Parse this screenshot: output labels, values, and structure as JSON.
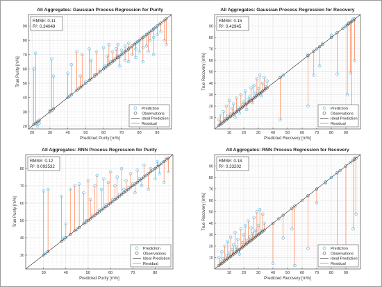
{
  "chart_data": [
    {
      "type": "scatter",
      "title": "All Aggregates: Gaussian Process Regression for Purity",
      "xlabel": "Predicted Purity [m%]",
      "ylabel": "True Purity [m%]",
      "xlim": [
        18,
        98
      ],
      "ylim": [
        18,
        98
      ],
      "xticks": [
        20,
        30,
        40,
        50,
        60,
        70,
        80,
        90
      ],
      "yticks": [
        20,
        30,
        40,
        50,
        60,
        70,
        80,
        90
      ],
      "grid": true,
      "stats": [
        "RMSE: 0.11",
        "R²: 0.34049"
      ],
      "legend": [
        "Prediction",
        "Observations",
        "Ideal Prediction",
        "Residual"
      ],
      "legend_position": "bottom-right",
      "points": [
        [
          21,
          60
        ],
        [
          22,
          71
        ],
        [
          23,
          20
        ],
        [
          24,
          22
        ],
        [
          30,
          31
        ],
        [
          31,
          67
        ],
        [
          32,
          55
        ],
        [
          40,
          57
        ],
        [
          41,
          41
        ],
        [
          42,
          63
        ],
        [
          45,
          72
        ],
        [
          46,
          46
        ],
        [
          47,
          55
        ],
        [
          48,
          70
        ],
        [
          50,
          51
        ],
        [
          52,
          74
        ],
        [
          53,
          66
        ],
        [
          55,
          56
        ],
        [
          56,
          72
        ],
        [
          58,
          59
        ],
        [
          60,
          75
        ],
        [
          61,
          62
        ],
        [
          62,
          69
        ],
        [
          63,
          77
        ],
        [
          64,
          65
        ],
        [
          65,
          72
        ],
        [
          66,
          67
        ],
        [
          67,
          74
        ],
        [
          68,
          77
        ],
        [
          68,
          69
        ],
        [
          69,
          62
        ],
        [
          70,
          73
        ],
        [
          71,
          71
        ],
        [
          72,
          76
        ],
        [
          72,
          66
        ],
        [
          73,
          73
        ],
        [
          74,
          78
        ],
        [
          74,
          65
        ],
        [
          75,
          75
        ],
        [
          76,
          70
        ],
        [
          77,
          77
        ],
        [
          78,
          74
        ],
        [
          78,
          68
        ],
        [
          79,
          79
        ],
        [
          80,
          72
        ],
        [
          81,
          81
        ],
        [
          82,
          75
        ],
        [
          82,
          65
        ],
        [
          83,
          83
        ],
        [
          84,
          76
        ],
        [
          85,
          85
        ],
        [
          85,
          72
        ],
        [
          86,
          80
        ],
        [
          87,
          87
        ],
        [
          88,
          82
        ],
        [
          88,
          70
        ],
        [
          89,
          89
        ],
        [
          90,
          84
        ],
        [
          91,
          91
        ],
        [
          92,
          86
        ],
        [
          94,
          80
        ],
        [
          95,
          77
        ]
      ]
    },
    {
      "type": "scatter",
      "title": "All Aggregates: Gaussian Process Regression for Recovery",
      "xlabel": "Predicted Recovery [m%]",
      "ylabel": "True Recovery [m%]",
      "xlim": [
        0,
        100
      ],
      "ylim": [
        0,
        100
      ],
      "xticks": [
        10,
        20,
        30,
        40,
        50,
        60,
        70,
        80,
        90
      ],
      "yticks": [
        10,
        20,
        30,
        40,
        50,
        60,
        70,
        80,
        90
      ],
      "grid": true,
      "stats": [
        "RMSE: 0.15",
        "R²: 0.42945"
      ],
      "legend": [
        "Prediction",
        "Observations",
        "Ideal Prediction",
        "Residual"
      ],
      "legend_position": "bottom-right",
      "points": [
        [
          3,
          8
        ],
        [
          4,
          12
        ],
        [
          5,
          6
        ],
        [
          6,
          15
        ],
        [
          7,
          9
        ],
        [
          8,
          20
        ],
        [
          9,
          11
        ],
        [
          10,
          25
        ],
        [
          11,
          13
        ],
        [
          12,
          18
        ],
        [
          13,
          22
        ],
        [
          14,
          10
        ],
        [
          15,
          27
        ],
        [
          16,
          19
        ],
        [
          17,
          14
        ],
        [
          18,
          30
        ],
        [
          19,
          21
        ],
        [
          20,
          24
        ],
        [
          21,
          33
        ],
        [
          22,
          17
        ],
        [
          23,
          26
        ],
        [
          24,
          28
        ],
        [
          25,
          36
        ],
        [
          26,
          23
        ],
        [
          27,
          38
        ],
        [
          28,
          31
        ],
        [
          29,
          44
        ],
        [
          30,
          35
        ],
        [
          31,
          47
        ],
        [
          32,
          29
        ],
        [
          33,
          40
        ],
        [
          34,
          45
        ],
        [
          35,
          37
        ],
        [
          36,
          42
        ],
        [
          45,
          8
        ],
        [
          47,
          47
        ],
        [
          64,
          65
        ],
        [
          64,
          20
        ],
        [
          68,
          47
        ],
        [
          70,
          70
        ],
        [
          72,
          55
        ],
        [
          74,
          75
        ],
        [
          80,
          82
        ],
        [
          84,
          48
        ],
        [
          88,
          88
        ],
        [
          90,
          90
        ],
        [
          91,
          30
        ],
        [
          92,
          93
        ],
        [
          93,
          49
        ],
        [
          94,
          5
        ],
        [
          95,
          96
        ],
        [
          96,
          60
        ]
      ]
    },
    {
      "type": "scatter",
      "title": "All Aggregates: RNN Process Regression for Purity",
      "xlabel": "Predicted Purity [m%]",
      "ylabel": "True Purity [m%]",
      "xlim": [
        22,
        88
      ],
      "ylim": [
        22,
        88
      ],
      "xticks": [
        30,
        40,
        50,
        60,
        70,
        80
      ],
      "yticks": [
        30,
        40,
        50,
        60,
        70,
        80
      ],
      "grid": true,
      "stats": [
        "RMSE: 0.12",
        "R²: 0.093532"
      ],
      "legend": [
        "Prediction",
        "Observations",
        "Ideal Prediction",
        "Residual"
      ],
      "legend_position": "bottom-right",
      "points": [
        [
          30,
          67
        ],
        [
          31,
          31
        ],
        [
          32,
          68
        ],
        [
          38,
          64
        ],
        [
          39,
          40
        ],
        [
          40,
          48
        ],
        [
          42,
          68
        ],
        [
          44,
          70
        ],
        [
          45,
          45
        ],
        [
          46,
          71
        ],
        [
          48,
          66
        ],
        [
          49,
          50
        ],
        [
          50,
          73
        ],
        [
          51,
          62
        ],
        [
          52,
          53
        ],
        [
          53,
          70
        ],
        [
          54,
          76
        ],
        [
          55,
          56
        ],
        [
          56,
          68
        ],
        [
          57,
          74
        ],
        [
          58,
          59
        ],
        [
          59,
          72
        ],
        [
          60,
          78
        ],
        [
          61,
          62
        ],
        [
          62,
          70
        ],
        [
          63,
          75
        ],
        [
          64,
          65
        ],
        [
          65,
          80
        ],
        [
          66,
          68
        ],
        [
          67,
          73
        ],
        [
          68,
          69
        ],
        [
          69,
          77
        ],
        [
          70,
          71
        ],
        [
          71,
          66
        ],
        [
          72,
          79
        ],
        [
          73,
          74
        ],
        [
          74,
          70
        ],
        [
          75,
          82
        ],
        [
          76,
          76
        ],
        [
          77,
          68
        ],
        [
          78,
          80
        ],
        [
          79,
          79
        ],
        [
          80,
          74
        ],
        [
          81,
          84
        ],
        [
          82,
          77
        ],
        [
          83,
          83
        ],
        [
          84,
          72
        ],
        [
          85,
          86
        ],
        [
          86,
          78
        ]
      ]
    },
    {
      "type": "scatter",
      "title": "All Aggregates: RNN Process Regression for Recovery",
      "xlabel": "Predicted Recovery [m%]",
      "ylabel": "True Recovery [m%]",
      "xlim": [
        0,
        100
      ],
      "ylim": [
        0,
        100
      ],
      "xticks": [
        10,
        20,
        30,
        40,
        50,
        60,
        70,
        80,
        90
      ],
      "yticks": [
        10,
        20,
        30,
        40,
        50,
        60,
        70,
        80,
        90
      ],
      "grid": true,
      "stats": [
        "RMSE: 0.18",
        "R²: 0.33202"
      ],
      "legend": [
        "Prediction",
        "Observations",
        "Ideal Prediction",
        "Residual"
      ],
      "legend_position": "bottom-right",
      "points": [
        [
          3,
          10
        ],
        [
          4,
          6
        ],
        [
          5,
          15
        ],
        [
          6,
          9
        ],
        [
          7,
          20
        ],
        [
          8,
          12
        ],
        [
          9,
          24
        ],
        [
          10,
          14
        ],
        [
          11,
          28
        ],
        [
          12,
          17
        ],
        [
          13,
          21
        ],
        [
          14,
          32
        ],
        [
          15,
          19
        ],
        [
          16,
          26
        ],
        [
          17,
          13
        ],
        [
          18,
          35
        ],
        [
          19,
          23
        ],
        [
          20,
          30
        ],
        [
          21,
          38
        ],
        [
          22,
          25
        ],
        [
          23,
          42
        ],
        [
          24,
          28
        ],
        [
          25,
          36
        ],
        [
          26,
          31
        ],
        [
          27,
          45
        ],
        [
          28,
          34
        ],
        [
          29,
          50
        ],
        [
          30,
          38
        ],
        [
          31,
          52
        ],
        [
          32,
          33
        ],
        [
          33,
          48
        ],
        [
          34,
          40
        ],
        [
          40,
          5
        ],
        [
          44,
          44
        ],
        [
          47,
          27
        ],
        [
          53,
          35
        ],
        [
          55,
          3
        ],
        [
          60,
          60
        ],
        [
          64,
          18
        ],
        [
          70,
          58
        ],
        [
          76,
          75
        ],
        [
          80,
          80
        ],
        [
          84,
          18
        ],
        [
          86,
          86
        ],
        [
          90,
          4
        ],
        [
          93,
          93
        ],
        [
          95,
          35
        ],
        [
          96,
          97
        ],
        [
          97,
          48
        ]
      ]
    }
  ]
}
